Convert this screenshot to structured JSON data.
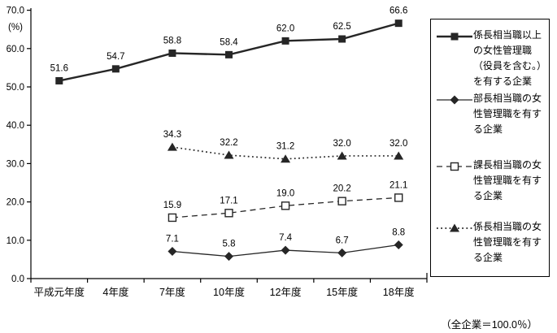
{
  "chart_data": {
    "type": "line",
    "categories": [
      "平成元年度",
      "4年度",
      "7年度",
      "10年度",
      "12年度",
      "15年度",
      "18年度"
    ],
    "series": [
      {
        "name": "係長相当職以上の女性管理職（役員を含む。）を有する企業",
        "values": [
          51.6,
          54.7,
          58.8,
          58.4,
          62.0,
          62.5,
          66.6
        ],
        "line": "solid-thick",
        "marker": "filled-square"
      },
      {
        "name": "部長相当職の女性管理職を有する企業",
        "values": [
          null,
          null,
          7.1,
          5.8,
          7.4,
          6.7,
          8.8
        ],
        "line": "solid-thin",
        "marker": "filled-diamond"
      },
      {
        "name": "課長相当職の女性管理職を有する企業",
        "values": [
          null,
          null,
          15.9,
          17.1,
          19.0,
          20.2,
          21.1
        ],
        "line": "dashed",
        "marker": "open-square"
      },
      {
        "name": "係長相当職の女性管理職を有する企業",
        "values": [
          null,
          null,
          34.3,
          32.2,
          31.2,
          32.0,
          32.0
        ],
        "line": "dotted",
        "marker": "filled-triangle"
      }
    ],
    "ylabel": "(%)",
    "ylim": [
      0,
      70
    ],
    "ytick_step": 10,
    "ytick_decimals": 1,
    "value_label_decimals": 1,
    "grid": false,
    "legend_position": "right",
    "note": "（全企業＝100.0％）",
    "series_color": "#262626",
    "text_color": "#000000"
  }
}
